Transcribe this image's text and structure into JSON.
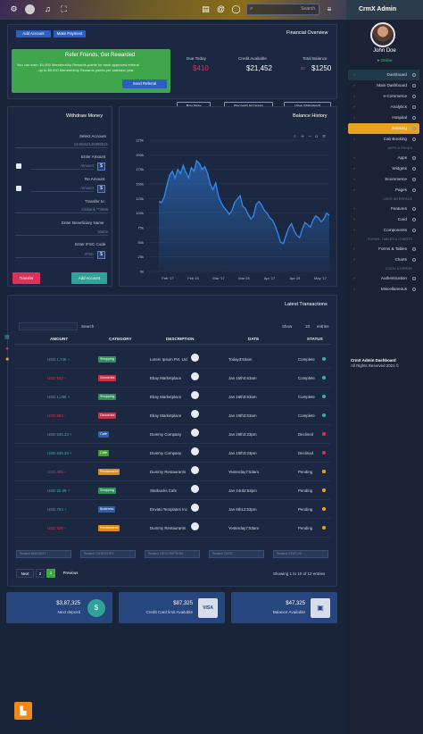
{
  "app": {
    "logo": "CrmX Admin",
    "user_name": "John Doe",
    "user_status": "● Online"
  },
  "topbar": {
    "search_placeholder": "Search",
    "icons": [
      "gear-icon",
      "avatar-icon",
      "bell-icon",
      "expand-icon",
      "clipboard-icon",
      "at-icon",
      "chat-icon",
      "menu-icon"
    ]
  },
  "sidebar": {
    "items": [
      {
        "label": "Dashboard",
        "style": "hl"
      },
      {
        "label": "Main Dashboard",
        "style": ""
      },
      {
        "label": "e-Commerce",
        "style": ""
      },
      {
        "label": "Analytics",
        "style": ""
      },
      {
        "label": "Hospital",
        "style": ""
      },
      {
        "label": "Banking",
        "style": "active"
      },
      {
        "label": "Cab Booking",
        "style": ""
      }
    ],
    "section1": "APPS & PAGES",
    "apps": [
      "Apps",
      "Widgets",
      "Ecommerce",
      "Pages"
    ],
    "section2": "USER INTERFACE",
    "ui": [
      "Features",
      "Card",
      "Components"
    ],
    "section3": "FORMS, TABLES & CHARTS",
    "forms": [
      "Forms & Tables",
      "Charts"
    ],
    "section4": "LOGIN & ERROR",
    "login": [
      "Authentication",
      "Miscellaneous"
    ],
    "copyright_title": "CrmX Admin Dashboard",
    "copyright_text": "All Rights Reserved 2021 ©"
  },
  "financial": {
    "title": "Financial Overview",
    "btn_add_account": "Add Account",
    "btn_make_payment": "Make Payment",
    "refer_title": "Refer Friends, Get Rewarded",
    "refer_text1": "You can earn: $1,000 Membership Rewards points for each approved referral",
    "refer_text2": "- up to $5,000 Membership Rewards points per calendar year",
    "refer_button": "Send Referral",
    "due_label": "Due Today",
    "due_value": "$410",
    "credit_label": "Credit Available",
    "credit_value": "$21,452",
    "balance_label": "Total Balance",
    "balance_old": "$2",
    "balance_value": "$1250",
    "btn_pay": "Pay Now",
    "btn_increase": "Request Increase",
    "btn_statement": "View Statement"
  },
  "withdraw": {
    "title": "Withdraw Money",
    "select_account_label": "Select Account",
    "account_number": "1245652145898521",
    "transfer_label": "Enter Amount",
    "amount_placeholder": "Amount",
    "re_label": "Re Amount",
    "re_placeholder": "Amount",
    "transfer_to_label": "Transfer to",
    "transfer_to_value": "Citibank **3596",
    "beneficiary_label": "Enter Beneficiary Name",
    "beneficiary_placeholder": "Name",
    "ifsc_label": "Enter IFSC Code",
    "ifsc_placeholder": "IFSC",
    "btn_transfer": "Transfer",
    "btn_add_account": "Add Account",
    "dollar": "$"
  },
  "balance_chart_title": "Balance History",
  "chart_data": {
    "type": "area",
    "title": "Balance History",
    "x_ticks": [
      "Feb '17",
      "Feb 15",
      "Mar '17",
      "Mar 15",
      "Apr '17",
      "Apr 15",
      "May '17"
    ],
    "y_ticks": [
      "0k",
      "25k",
      "50k",
      "75k",
      "100k",
      "125k",
      "150k",
      "175k",
      "200k",
      "225k"
    ],
    "ylim": [
      0,
      225000
    ],
    "values": [
      120000,
      118000,
      128000,
      148000,
      165000,
      172000,
      160000,
      175000,
      168000,
      182000,
      170000,
      160000,
      178000,
      172000,
      190000,
      185000,
      175000,
      180000,
      168000,
      150000,
      140000,
      152000,
      130000,
      118000,
      110000,
      105000,
      98000,
      104000,
      118000,
      124000,
      130000,
      112000,
      108000,
      98000,
      90000,
      95000,
      115000,
      120000,
      114000,
      105000,
      100000,
      92000,
      88000,
      78000,
      65000,
      50000,
      48000,
      62000,
      75000,
      82000,
      70000,
      62000,
      58000,
      72000,
      84000,
      80000,
      76000,
      88000,
      95000,
      92000,
      85000,
      90000,
      100000,
      96000
    ]
  },
  "transactions": {
    "title": "Latest Transactions",
    "search_label": "Search",
    "show_label": "Show",
    "show_value": "10",
    "entries_label": "entries",
    "headers": [
      "AMOUNT",
      "CATEGORY",
      "DESCRIPTION",
      "DATE",
      "STATUS"
    ],
    "rows": [
      {
        "amount": "USD 1,745 +",
        "amount_color": "#3bb0a8",
        "category": "Shopping",
        "cat_color": "#2f8f5a",
        "desc": "Lorem Ipsum Pvt. Ltd",
        "date": "Today3:53am",
        "status": "Complete",
        "dot": "#2fb3a6"
      },
      {
        "amount": "USD 943 -",
        "amount_color": "#e0305a",
        "category": "Groceries",
        "cat_color": "#c2344a",
        "desc": "Ebay Marketplace",
        "date": "Jan 15th3:53am",
        "status": "Complete",
        "dot": "#2fb3a6"
      },
      {
        "amount": "USD 1,256 +",
        "amount_color": "#3bb0a8",
        "category": "Shopping",
        "cat_color": "#2f8f5a",
        "desc": "Ebay Marketplace",
        "date": "Jan 15th3:53am",
        "status": "Complete",
        "dot": "#2fb3a6"
      },
      {
        "amount": "USD 654 -",
        "amount_color": "#e0305a",
        "category": "Groceries",
        "cat_color": "#c2344a",
        "desc": "Ebay Marketplace",
        "date": "Jan 15th3:53am",
        "status": "Complete",
        "dot": "#2fb3a6"
      },
      {
        "amount": "USD 645.23 +",
        "amount_color": "#3bb0a8",
        "category": "Cafe",
        "cat_color": "#2f5fa8",
        "desc": "Dummy Company",
        "date": "Jan 29th3:23pm",
        "status": "Declined",
        "dot": "#e0305a"
      },
      {
        "amount": "USD 645.23 +",
        "amount_color": "#3bb0a8",
        "category": "Cafe",
        "cat_color": "#4a9a3a",
        "desc": "Dummy Company",
        "date": "Jan 15th3:23pm",
        "status": "Declined",
        "dot": "#e0305a"
      },
      {
        "amount": "USD 485 -",
        "amount_color": "#e0305a",
        "category": "Restaurants",
        "cat_color": "#e08a1a",
        "desc": "Dummy Restaurants",
        "date": "Yesterday7:53am",
        "status": "Pending",
        "dot": "#f0a21a"
      },
      {
        "amount": "USD 22.99 +",
        "amount_color": "#3bb0a8",
        "category": "Shopping",
        "cat_color": "#2f8f5a",
        "desc": "Starbucks Cafe",
        "date": "Jan 24rd2:53pm",
        "status": "Pending",
        "dot": "#f0a21a"
      },
      {
        "amount": "USD 754 +",
        "amount_color": "#3bb0a8",
        "category": "Business",
        "cat_color": "#2f5fa8",
        "desc": "Envato Templates Inc",
        "date": "Jan 8th12:53pm",
        "status": "Pending",
        "dot": "#f0a21a"
      },
      {
        "amount": "USD 325 -",
        "amount_color": "#e0305a",
        "category": "Restaurants",
        "cat_color": "#e08a1a",
        "desc": "Dummy Restaurants",
        "date": "Yesterday7:53am",
        "status": "Pending",
        "dot": "#f0a21a"
      }
    ],
    "filters": [
      "Search AMOUNT",
      "Search CATEGORY",
      "Search DESCRIPTION",
      "Search DATE",
      "Search STATUS"
    ],
    "pagination": {
      "next": "Next",
      "pages": [
        "2",
        "1"
      ],
      "prev": "Previous"
    },
    "showing": "Showing 1 to 10 of 12 entries"
  },
  "stats": [
    {
      "value": "$3,87,325",
      "label": "Next deposit",
      "icon": "dollar-icon",
      "glyph": "$"
    },
    {
      "value": "$87,325",
      "label": "Credit Card limit Available",
      "icon": "visa-icon",
      "glyph": "VISA"
    },
    {
      "value": "$47,325",
      "label": "Balance Available",
      "icon": "wallet-icon",
      "glyph": "▣"
    }
  ]
}
